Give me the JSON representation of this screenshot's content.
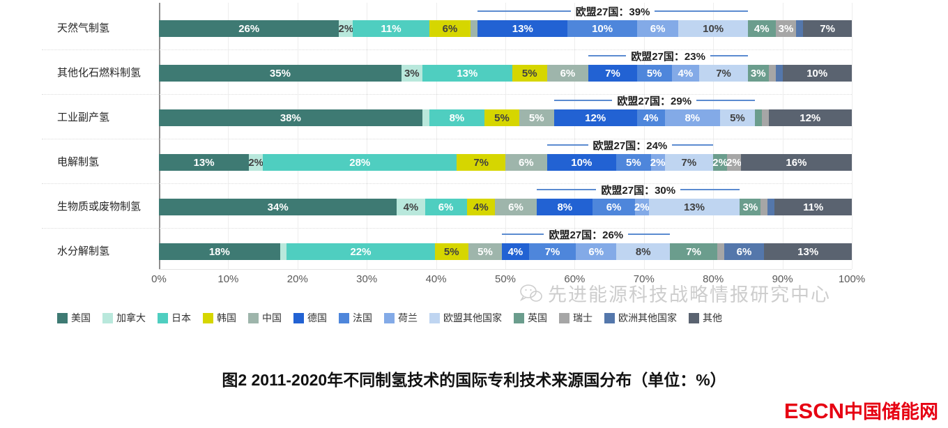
{
  "chart_data": {
    "type": "bar",
    "stacked": true,
    "orientation": "horizontal",
    "unit": "%",
    "x_axis": {
      "min": 0,
      "max": 100,
      "ticks": [
        "0%",
        "10%",
        "20%",
        "30%",
        "40%",
        "50%",
        "60%",
        "70%",
        "80%",
        "90%",
        "100%"
      ]
    },
    "series": [
      {
        "key": "usa",
        "label": "美国",
        "color": "#3E7A73",
        "text": "#ffffff"
      },
      {
        "key": "canada",
        "label": "加拿大",
        "color": "#B9E8DC",
        "text": "#404040"
      },
      {
        "key": "japan",
        "label": "日本",
        "color": "#4FCEC0",
        "text": "#ffffff"
      },
      {
        "key": "korea",
        "label": "韩国",
        "color": "#D6D600",
        "text": "#404040"
      },
      {
        "key": "china",
        "label": "中国",
        "color": "#9EB5AB",
        "text": "#ffffff"
      },
      {
        "key": "germany",
        "label": "德国",
        "color": "#2262D3",
        "text": "#ffffff"
      },
      {
        "key": "france",
        "label": "法国",
        "color": "#4E86DB",
        "text": "#ffffff"
      },
      {
        "key": "netherlands",
        "label": "荷兰",
        "color": "#83AAE7",
        "text": "#ffffff"
      },
      {
        "key": "eu-others",
        "label": "欧盟其他国家",
        "color": "#BFD5F1",
        "text": "#404040"
      },
      {
        "key": "uk",
        "label": "英国",
        "color": "#6B9D8D",
        "text": "#ffffff"
      },
      {
        "key": "switzerland",
        "label": "瑞士",
        "color": "#A6A6A6",
        "text": "#ffffff"
      },
      {
        "key": "europe-others",
        "label": "欧洲其他国家",
        "color": "#5477AB",
        "text": "#ffffff"
      },
      {
        "key": "others",
        "label": "其他",
        "color": "#5A6370",
        "text": "#ffffff"
      }
    ],
    "eu27_span": {
      "from_series": "germany",
      "to_series": "eu-others",
      "line_color": "#5B8BD0"
    },
    "rows": [
      {
        "category": "天然气制氢",
        "eu27_label": "欧盟27国：39%",
        "values": [
          26,
          2,
          11,
          6,
          1,
          13,
          10,
          6,
          10,
          4,
          3,
          1,
          7
        ]
      },
      {
        "category": "其他化石燃料制氢",
        "eu27_label": "欧盟27国：23%",
        "values": [
          35,
          3,
          13,
          5,
          6,
          7,
          5,
          4,
          7,
          3,
          1,
          1,
          10
        ]
      },
      {
        "category": "工业副产氢",
        "eu27_label": "欧盟27国：29%",
        "values": [
          38,
          1,
          8,
          5,
          5,
          12,
          4,
          8,
          5,
          1,
          1,
          0,
          12
        ]
      },
      {
        "category": "电解制氢",
        "eu27_label": "欧盟27国：24%",
        "values": [
          13,
          2,
          28,
          7,
          6,
          10,
          5,
          2,
          7,
          2,
          2,
          0,
          16
        ]
      },
      {
        "category": "生物质或废物制氢",
        "eu27_label": "欧盟27国：30%",
        "values": [
          34,
          4,
          6,
          4,
          6,
          8,
          6,
          2,
          13,
          3,
          1,
          1,
          11
        ]
      },
      {
        "category": "水分解制氢",
        "eu27_label": "欧盟27国：26%",
        "values": [
          18,
          1,
          22,
          5,
          5,
          4,
          7,
          6,
          8,
          7,
          1,
          6,
          13
        ]
      }
    ]
  },
  "watermark": {
    "text": "先进能源科技战略情报研究中心"
  },
  "caption": "图2 2011-2020年不同制氢技术的国际专利技术来源国分布（单位：%）",
  "logo": {
    "text_en": "ESCN",
    "text_cn": "中国储能网",
    "color": "#E60012"
  }
}
